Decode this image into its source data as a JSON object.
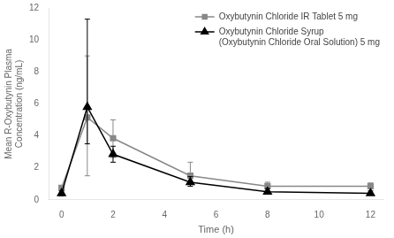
{
  "chart_data": {
    "type": "line",
    "xlabel": "Time (h)",
    "ylabel": "Mean R-Oxybutynin Plasma\nConcentration (ng/mL)",
    "x": [
      0,
      1,
      2,
      5,
      8,
      12
    ],
    "series": [
      {
        "name": "Oxybutynin Chloride IR Tablet 5 mg",
        "color": "#888888",
        "marker": "square",
        "values": [
          0.75,
          5.15,
          3.85,
          1.5,
          0.85,
          0.85
        ],
        "err_lo": [
          0.15,
          3.65,
          1.2,
          0.35,
          0.15,
          0.15
        ],
        "err_hi": [
          0.15,
          3.85,
          1.15,
          0.85,
          0.25,
          0.2
        ]
      },
      {
        "name": "Oxybutynin Chloride Syrup\n(Oxybutynin Chloride Oral Solution) 5 mg",
        "color": "#000000",
        "marker": "triangle",
        "values": [
          0.4,
          5.8,
          2.85,
          1.1,
          0.5,
          0.4
        ],
        "err_lo": [
          0.15,
          2.3,
          0.5,
          0.25,
          0.15,
          0.1
        ],
        "err_hi": [
          0.15,
          5.5,
          0.5,
          0.35,
          0.2,
          0.15
        ]
      }
    ],
    "xlim": [
      -0.5,
      12.5
    ],
    "xticks": [
      0,
      2,
      4,
      6,
      8,
      10,
      12
    ],
    "ylim": [
      0,
      12
    ],
    "yticks": [
      0,
      2,
      4,
      6,
      8,
      10,
      12
    ],
    "grid": false,
    "legend": "upper right"
  }
}
